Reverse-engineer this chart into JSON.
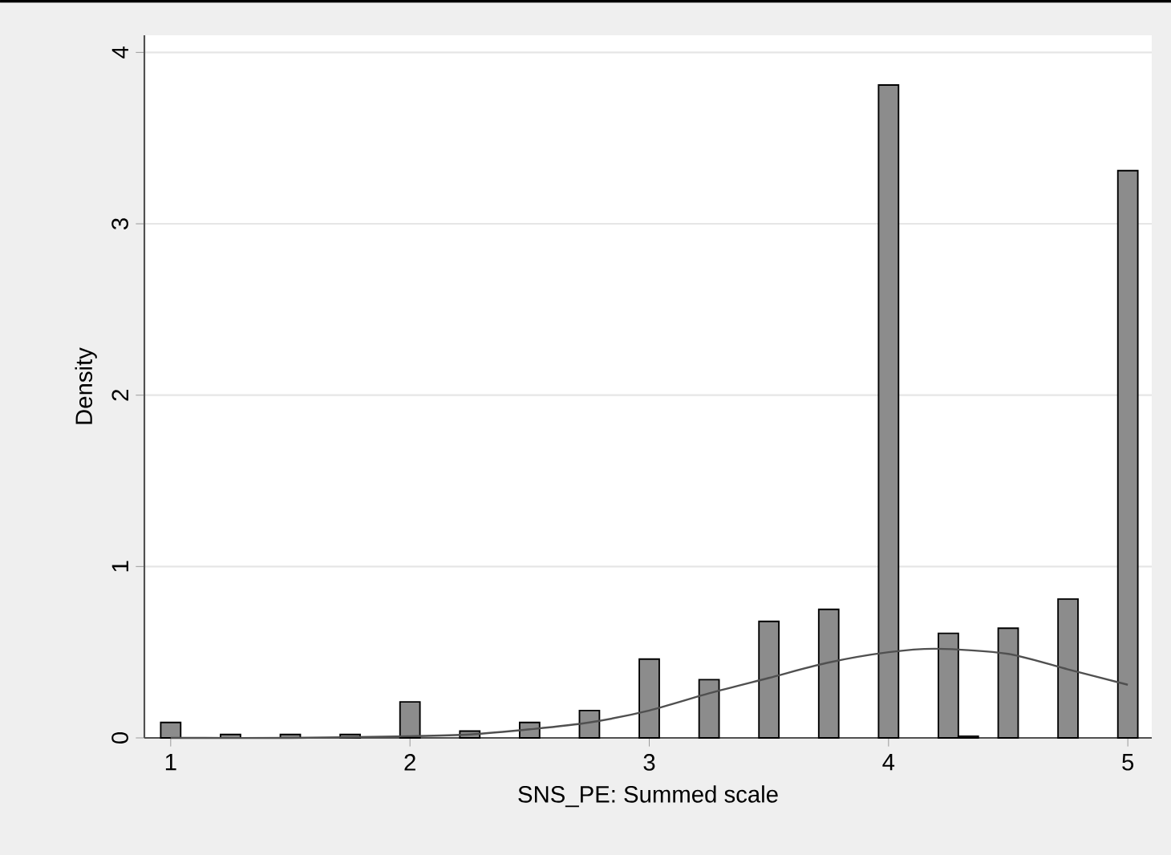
{
  "chart_data": {
    "type": "histogram",
    "xlabel": "SNS_PE: Summed scale",
    "ylabel": "Density",
    "xlim": [
      0.89,
      5.1
    ],
    "ylim": [
      0,
      4.1
    ],
    "xticks": [
      1,
      2,
      3,
      4,
      5
    ],
    "yticks": [
      0,
      1,
      2,
      3,
      4
    ],
    "grid": "y",
    "series": [
      {
        "color": "#8c8c8c",
        "bins": [
          0.9583,
          1.0417,
          1.125,
          1.2083,
          1.2917,
          1.375,
          1.4583,
          1.5417,
          1.625,
          1.7083,
          1.7917,
          1.875,
          1.9583,
          2.0417,
          2.125,
          2.2083,
          2.2917,
          2.375,
          2.4583,
          2.5417,
          2.625,
          2.7083,
          2.7917,
          2.875,
          2.9583,
          3.0417,
          3.125,
          3.2083,
          3.2917,
          3.375,
          3.4583,
          3.5417,
          3.625,
          3.7083,
          3.7917,
          3.875,
          3.9583,
          4.0417,
          4.125,
          4.2083,
          4.2917,
          4.375,
          4.4583,
          4.5417,
          4.625,
          4.7083,
          4.7917,
          4.875,
          4.9583,
          5.0417
        ],
        "values": [
          0.09,
          0,
          0,
          0.02,
          0,
          0,
          0.02,
          0,
          0,
          0.02,
          0,
          0,
          0.21,
          0,
          0,
          0.04,
          0,
          0,
          0.09,
          0,
          0,
          0.16,
          0,
          0,
          0.46,
          0,
          0,
          0.34,
          0,
          0,
          0.68,
          0,
          0,
          0.75,
          0,
          0,
          3.81,
          0,
          0,
          0.61,
          0.01,
          0,
          0.64,
          0,
          0,
          0.81,
          0,
          0,
          3.31
        ]
      },
      {
        "type": "line",
        "color": "#505050",
        "x": [
          1,
          1.5,
          2,
          2.25,
          2.5,
          2.75,
          3,
          3.25,
          3.5,
          3.75,
          4,
          4.2,
          4.5,
          4.75,
          5
        ],
        "values": [
          0,
          0,
          0.01,
          0.02,
          0.05,
          0.09,
          0.16,
          0.26,
          0.35,
          0.44,
          0.5,
          0.52,
          0.49,
          0.4,
          0.31
        ]
      }
    ]
  }
}
